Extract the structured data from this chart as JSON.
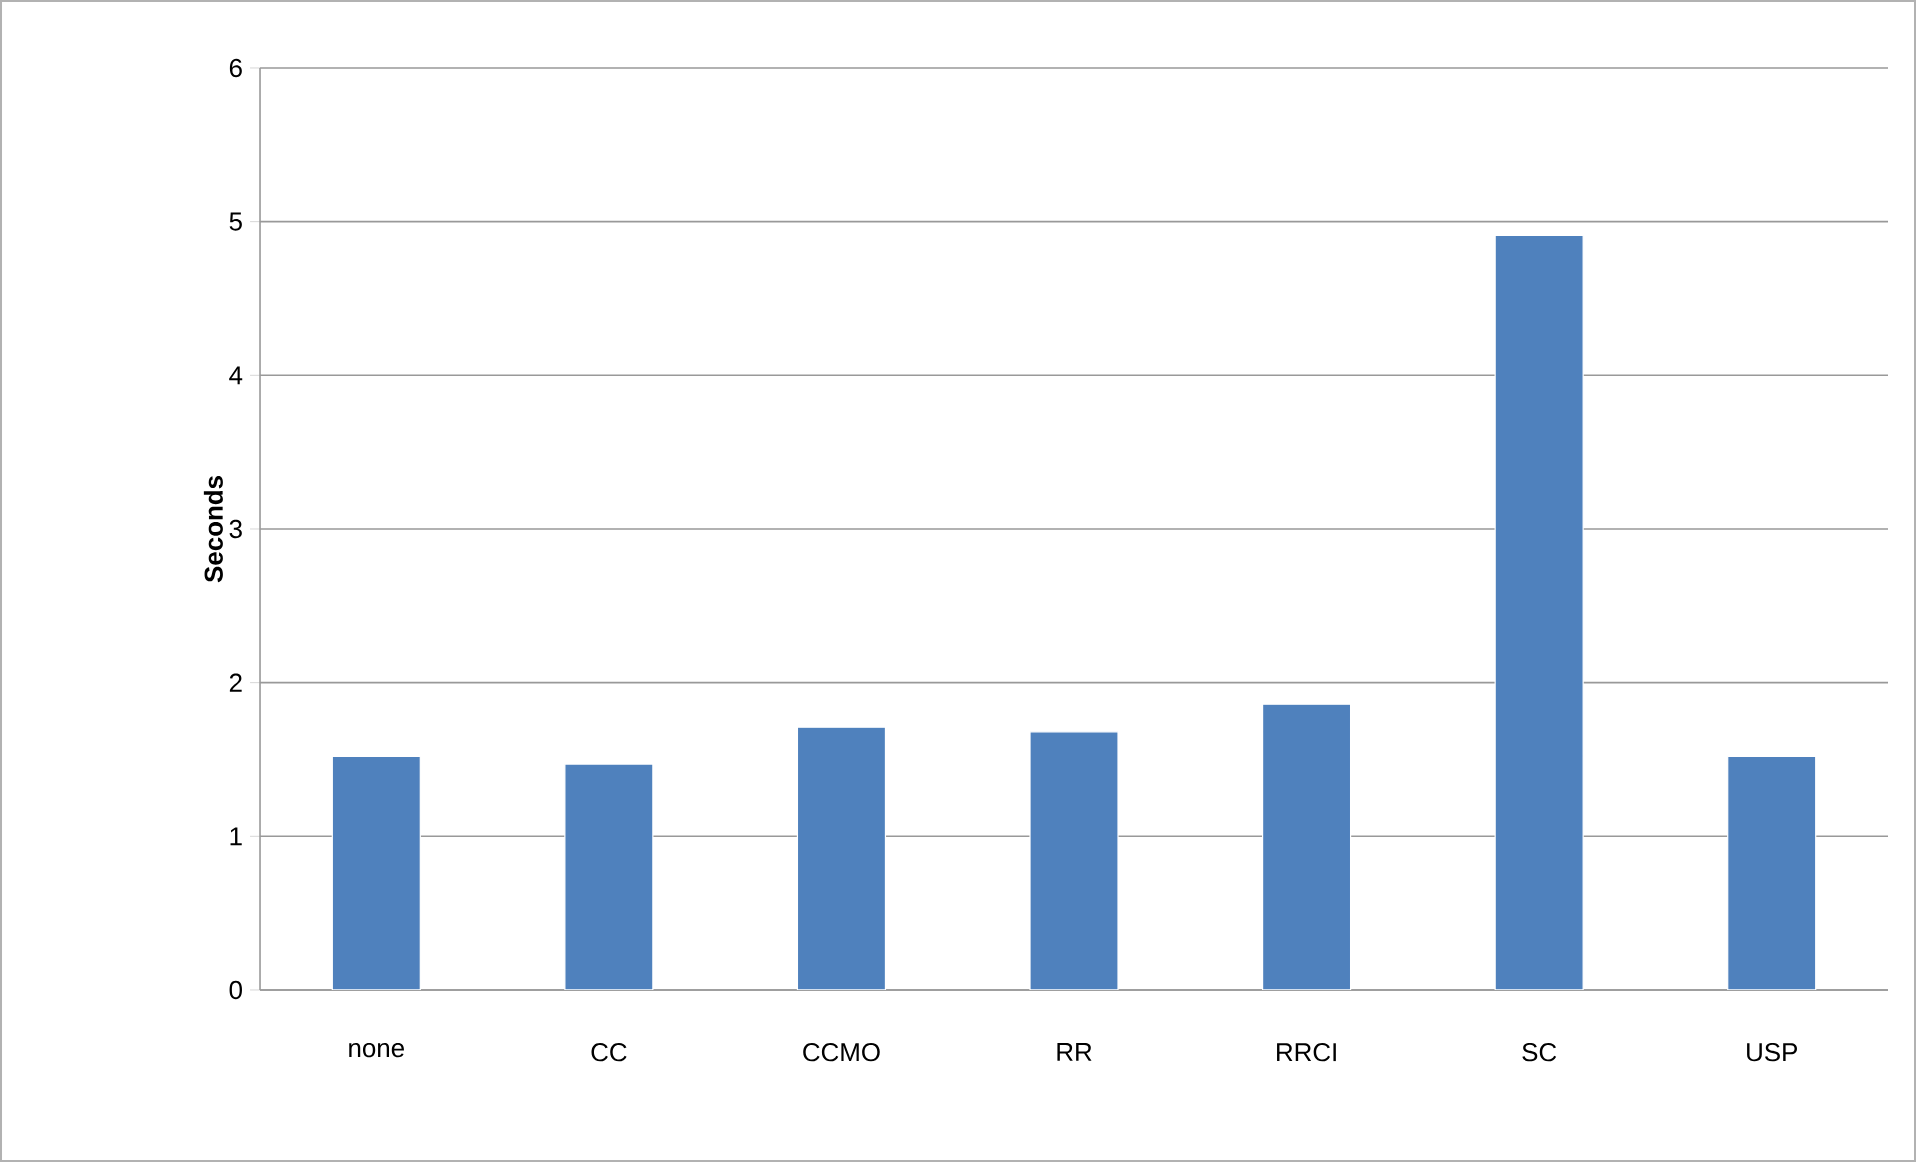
{
  "chart_data": {
    "type": "bar",
    "ylabel": "Seconds",
    "categories": [
      "none",
      "CC",
      "CCMO",
      "RR",
      "RRCI",
      "SC",
      "USP"
    ],
    "values": [
      1.52,
      1.47,
      1.71,
      1.68,
      1.86,
      4.91,
      1.52
    ],
    "color": "#4f81bd",
    "ylim": [
      0,
      6
    ],
    "yticks": [
      0,
      1,
      2,
      3,
      4,
      5,
      6
    ],
    "grid": "y"
  }
}
